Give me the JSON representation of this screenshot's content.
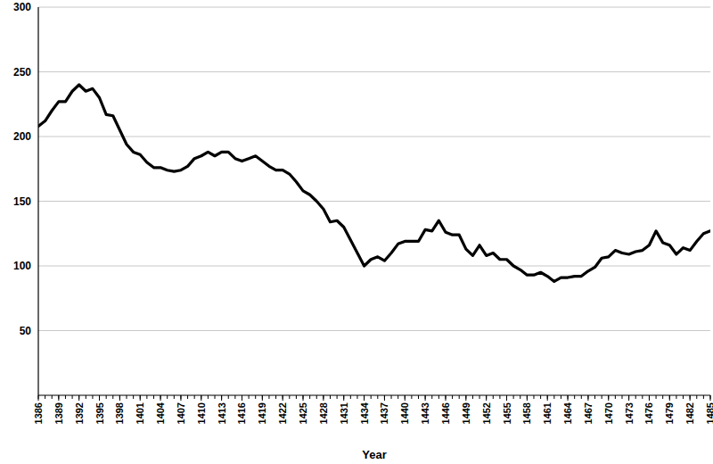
{
  "chart_data": {
    "type": "line",
    "x_label": "Year",
    "x": [
      1386,
      1387,
      1388,
      1389,
      1390,
      1391,
      1392,
      1393,
      1394,
      1395,
      1396,
      1397,
      1398,
      1399,
      1400,
      1401,
      1402,
      1403,
      1404,
      1405,
      1406,
      1407,
      1408,
      1409,
      1410,
      1411,
      1412,
      1413,
      1414,
      1415,
      1416,
      1417,
      1418,
      1419,
      1420,
      1421,
      1422,
      1423,
      1424,
      1425,
      1426,
      1427,
      1428,
      1429,
      1430,
      1431,
      1432,
      1433,
      1434,
      1435,
      1436,
      1437,
      1438,
      1439,
      1440,
      1441,
      1442,
      1443,
      1444,
      1445,
      1446,
      1447,
      1448,
      1449,
      1450,
      1451,
      1452,
      1453,
      1454,
      1455,
      1456,
      1457,
      1458,
      1459,
      1460,
      1461,
      1462,
      1463,
      1464,
      1465,
      1466,
      1467,
      1468,
      1469,
      1470,
      1471,
      1472,
      1473,
      1474,
      1475,
      1476,
      1477,
      1478,
      1479,
      1480,
      1481,
      1482,
      1483,
      1484,
      1485
    ],
    "values": [
      208,
      212,
      220,
      227,
      227,
      235,
      240,
      235,
      237,
      230,
      217,
      216,
      205,
      194,
      188,
      186,
      180,
      176,
      176,
      174,
      173,
      174,
      177,
      183,
      185,
      188,
      185,
      188,
      188,
      183,
      181,
      183,
      185,
      181,
      177,
      174,
      174,
      171,
      165,
      158,
      155,
      150,
      144,
      134,
      135,
      130,
      120,
      110,
      100,
      105,
      107,
      104,
      110,
      117,
      119,
      119,
      119,
      128,
      127,
      135,
      126,
      124,
      124,
      113,
      108,
      116,
      108,
      110,
      105,
      105,
      100,
      97,
      93,
      93,
      95,
      92,
      88,
      91,
      91,
      92,
      92,
      96,
      99,
      106,
      107,
      112,
      110,
      109,
      111,
      112,
      116,
      127,
      118,
      116,
      109,
      114,
      112,
      119,
      125,
      127
    ],
    "color": "#000000",
    "xlim": [
      1386,
      1485
    ],
    "xticks": [
      1386,
      1389,
      1392,
      1395,
      1398,
      1401,
      1404,
      1407,
      1410,
      1413,
      1416,
      1419,
      1422,
      1425,
      1428,
      1431,
      1434,
      1437,
      1440,
      1443,
      1446,
      1449,
      1452,
      1455,
      1458,
      1461,
      1464,
      1467,
      1470,
      1473,
      1476,
      1479,
      1482,
      1485
    ],
    "ylim": [
      0,
      300
    ],
    "yticks": [
      50,
      100,
      150,
      200,
      250,
      300
    ],
    "grid": true
  }
}
